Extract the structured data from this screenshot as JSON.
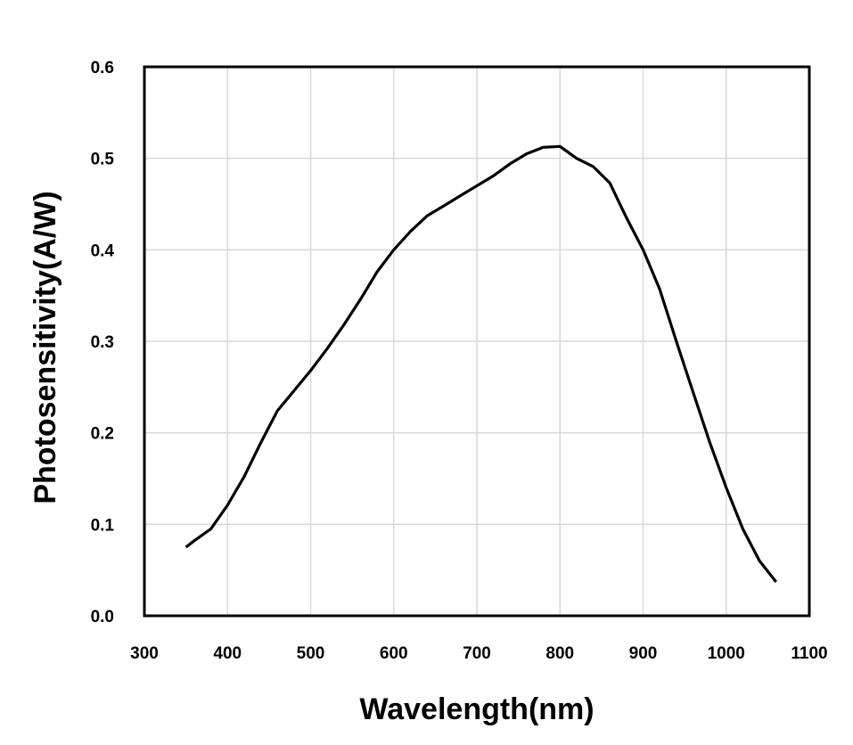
{
  "chart_data": {
    "type": "line",
    "title": "",
    "xlabel": "Wavelength(nm)",
    "ylabel": "Photosensitivity(A/W)",
    "xlim": [
      300,
      1100
    ],
    "ylim": [
      0,
      0.6
    ],
    "xticks": [
      "300",
      "400",
      "500",
      "600",
      "700",
      "800",
      "900",
      "1000",
      "1100"
    ],
    "yticks": [
      "0.0",
      "0.1",
      "0.2",
      "0.3",
      "0.4",
      "0.5",
      "0.6"
    ],
    "grid": true,
    "line_color": "#000000",
    "grid_color": "#d9d9d9",
    "series": [
      {
        "x": [
          350,
          360,
          380,
          400,
          420,
          440,
          460,
          480,
          500,
          520,
          540,
          560,
          580,
          600,
          620,
          640,
          660,
          680,
          700,
          720,
          740,
          760,
          780,
          800,
          820,
          840,
          860,
          880,
          900,
          920,
          940,
          960,
          980,
          1000,
          1020,
          1040,
          1060
        ],
        "y": [
          0.075,
          0.082,
          0.095,
          0.121,
          0.152,
          0.189,
          0.224,
          0.246,
          0.268,
          0.292,
          0.318,
          0.346,
          0.376,
          0.4,
          0.42,
          0.437,
          0.448,
          0.459,
          0.47,
          0.481,
          0.494,
          0.505,
          0.512,
          0.513,
          0.5,
          0.491,
          0.473,
          0.435,
          0.4,
          0.357,
          0.3,
          0.245,
          0.19,
          0.14,
          0.095,
          0.06,
          0.037
        ]
      }
    ]
  }
}
